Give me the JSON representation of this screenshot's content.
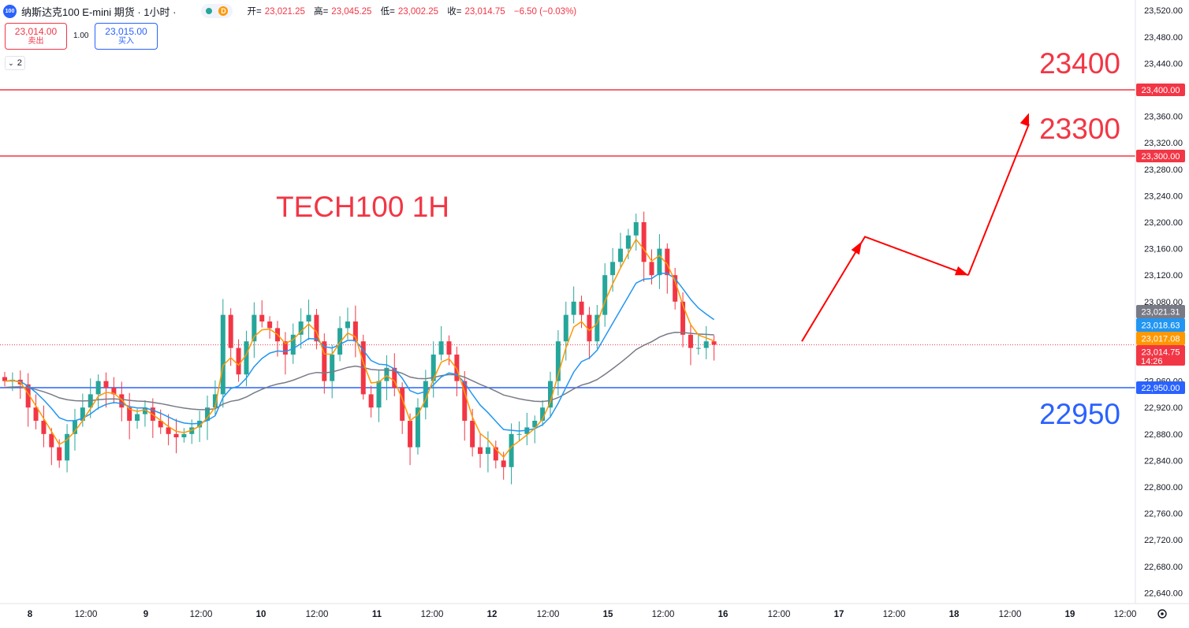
{
  "header": {
    "logo_text": "100",
    "title": "纳斯达克100 E-mini 期货 · 1小时 ·",
    "status_badge": "D",
    "ohlc": {
      "open_label": "开=",
      "open": "23,021.25",
      "high_label": "高=",
      "high": "23,045.25",
      "low_label": "低=",
      "low": "23,002.25",
      "close_label": "收=",
      "close": "23,014.75",
      "change": "−6.50 (−0.03%)"
    }
  },
  "trade": {
    "sell_price": "23,014.00",
    "sell_label": "卖出",
    "spread": "1.00",
    "buy_price": "23,015.00",
    "buy_label": "买入"
  },
  "indicators_toggle": "2",
  "colors": {
    "up": "#26a69a",
    "down": "#f23645",
    "ema_fast": "#ff9800",
    "ema_mid": "#2196f3",
    "ema_slow": "#787b86",
    "support": "#2962ff",
    "resistance": "#f23645",
    "arrow": "#ff0000"
  },
  "chart_data": {
    "type": "candlestick",
    "title": "TECH100 1H",
    "y_axis": {
      "min": 22600,
      "max": 23540,
      "ticks": [
        23520,
        23480,
        23440,
        23400,
        23360,
        23320,
        23280,
        23240,
        23200,
        23160,
        23120,
        23080,
        23040,
        23000,
        22960,
        22920,
        22880,
        22840,
        22800,
        22760,
        22720,
        22680,
        22640
      ],
      "tick_labels": [
        "23,520.00",
        "23,480.00",
        "23,440.00",
        "",
        "23,360.00",
        "23,320.00",
        "23,280.00",
        "23,240.00",
        "23,200.00",
        "23,160.00",
        "23,120.00",
        "23,080.00",
        "",
        "",
        "22,960.00",
        "22,920.00",
        "22,880.00",
        "22,840.00",
        "22,800.00",
        "22,760.00",
        "22,720.00",
        "22,680.00",
        "22,640.00"
      ]
    },
    "x_axis": {
      "labels": [
        "8",
        "12:00",
        "9",
        "12:00",
        "10",
        "12:00",
        "11",
        "12:00",
        "12",
        "12:00",
        "15",
        "12:00",
        "16",
        "12:00",
        "17",
        "12:00",
        "18",
        "12:00",
        "19",
        "12:00"
      ],
      "bold": [
        true,
        false,
        true,
        false,
        true,
        false,
        true,
        false,
        true,
        false,
        true,
        false,
        true,
        false,
        true,
        false,
        true,
        false,
        true,
        false
      ]
    },
    "horizontal_levels": [
      {
        "price": 23400,
        "label": "23,400.00",
        "annotation": "23400",
        "color": "#f23645"
      },
      {
        "price": 23300,
        "label": "23,300.00",
        "annotation": "23300",
        "color": "#f23645"
      },
      {
        "price": 22950,
        "label": "22,950.00",
        "annotation": "22950",
        "color": "#2962ff"
      }
    ],
    "price_tags": [
      {
        "price": 23021.31,
        "label": "23,021.31",
        "color": "#787b86"
      },
      {
        "price": 23018.63,
        "label": "23,018.63",
        "color": "#2196f3"
      },
      {
        "price": 23017.08,
        "label": "23,017.08",
        "color": "#ff9800"
      },
      {
        "price": 23014.75,
        "label": "23,014.75",
        "countdown": "14:26",
        "color": "#f23645"
      }
    ],
    "last_price": 23014.75,
    "forecast_path": [
      23020,
      23178,
      23120,
      23365
    ],
    "path_close": [
      22960,
      22962,
      22955,
      22920,
      22900,
      22880,
      22860,
      22840,
      22880,
      22900,
      22920,
      22940,
      22960,
      22950,
      22940,
      22920,
      22900,
      22910,
      22920,
      22900,
      22890,
      22880,
      22875,
      22880,
      22890,
      22900,
      22920,
      22940,
      23060,
      23010,
      22970,
      23020,
      23060,
      23050,
      23040,
      23020,
      23000,
      23030,
      23050,
      23060,
      23020,
      22960,
      23000,
      23040,
      23050,
      23020,
      22940,
      22920,
      22960,
      22980,
      22950,
      22900,
      22860,
      22920,
      22960,
      23000,
      23020,
      23000,
      22960,
      22900,
      22860,
      22850,
      22860,
      22840,
      22830,
      22880,
      22880,
      22890,
      22900,
      22920,
      22960,
      23020,
      23060,
      23080,
      23060,
      23020,
      23060,
      23120,
      23140,
      23160,
      23180,
      23200,
      23140,
      23120,
      23160,
      23120,
      23080,
      23030,
      23010,
      23010,
      23020,
      23015
    ]
  }
}
